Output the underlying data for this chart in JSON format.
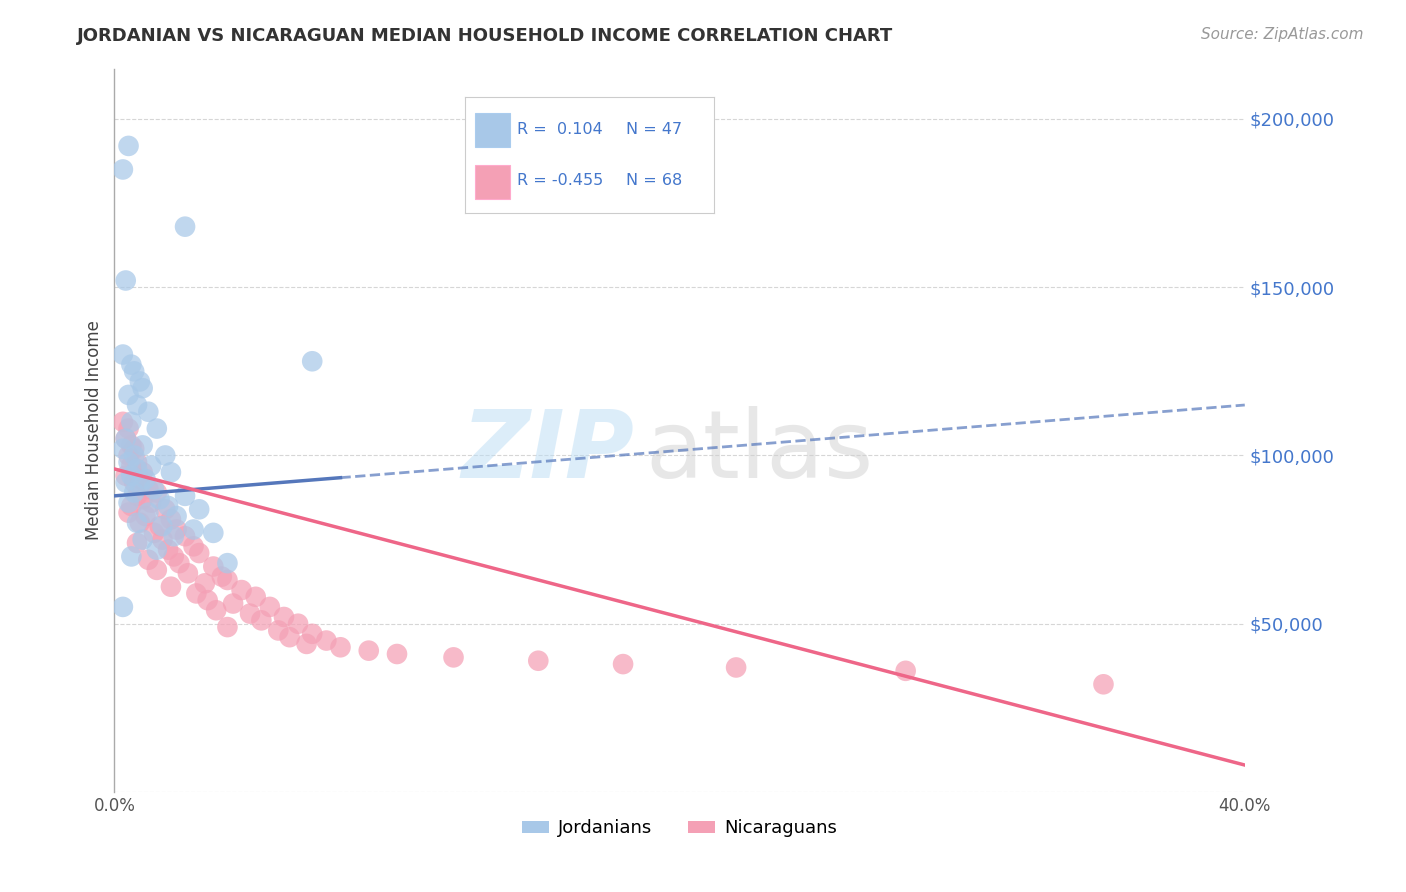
{
  "title": "JORDANIAN VS NICARAGUAN MEDIAN HOUSEHOLD INCOME CORRELATION CHART",
  "source": "Source: ZipAtlas.com",
  "ylabel": "Median Household Income",
  "yticks": [
    0,
    50000,
    100000,
    150000,
    200000
  ],
  "ytick_labels": [
    "",
    "$50,000",
    "$100,000",
    "$150,000",
    "$200,000"
  ],
  "xlim": [
    0.0,
    40.0
  ],
  "ylim": [
    0,
    215000
  ],
  "legend_label1": "Jordanians",
  "legend_label2": "Nicaraguans",
  "color_jordan": "#a8c8e8",
  "color_nicara": "#f4a0b5",
  "line_color_jordan": "#5577bb",
  "line_color_nicara": "#ee6688",
  "text_color_blue": "#4477cc",
  "background_color": "#ffffff",
  "grid_color": "#cccccc",
  "title_color": "#333333",
  "jordan_r": 0.104,
  "jordan_n": 47,
  "nicara_r": -0.455,
  "nicara_n": 68,
  "jordan_line_x0": 0.0,
  "jordan_line_y0": 88000,
  "jordan_line_x1": 40.0,
  "jordan_line_y1": 115000,
  "nicara_line_x0": 0.0,
  "nicara_line_y0": 96000,
  "nicara_line_x1": 40.0,
  "nicara_line_y1": 8000,
  "jordan_points": [
    [
      0.3,
      185000
    ],
    [
      0.5,
      192000
    ],
    [
      2.5,
      168000
    ],
    [
      0.4,
      152000
    ],
    [
      0.3,
      130000
    ],
    [
      0.6,
      127000
    ],
    [
      0.7,
      125000
    ],
    [
      0.9,
      122000
    ],
    [
      1.0,
      120000
    ],
    [
      0.5,
      118000
    ],
    [
      0.8,
      115000
    ],
    [
      1.2,
      113000
    ],
    [
      0.6,
      110000
    ],
    [
      1.5,
      108000
    ],
    [
      0.4,
      105000
    ],
    [
      1.0,
      103000
    ],
    [
      0.3,
      102000
    ],
    [
      0.7,
      100000
    ],
    [
      1.8,
      100000
    ],
    [
      0.5,
      98000
    ],
    [
      1.3,
      97000
    ],
    [
      0.8,
      96000
    ],
    [
      2.0,
      95000
    ],
    [
      0.6,
      94000
    ],
    [
      1.1,
      93000
    ],
    [
      0.4,
      92000
    ],
    [
      0.9,
      91000
    ],
    [
      1.4,
      90000
    ],
    [
      0.7,
      89000
    ],
    [
      2.5,
      88000
    ],
    [
      1.6,
      87000
    ],
    [
      0.5,
      86000
    ],
    [
      1.9,
      85000
    ],
    [
      3.0,
      84000
    ],
    [
      1.2,
      83000
    ],
    [
      2.2,
      82000
    ],
    [
      0.8,
      80000
    ],
    [
      1.7,
      79000
    ],
    [
      2.8,
      78000
    ],
    [
      3.5,
      77000
    ],
    [
      2.1,
      76000
    ],
    [
      1.0,
      75000
    ],
    [
      7.0,
      128000
    ],
    [
      0.3,
      55000
    ],
    [
      1.5,
      72000
    ],
    [
      0.6,
      70000
    ],
    [
      4.0,
      68000
    ]
  ],
  "nicara_points": [
    [
      0.3,
      110000
    ],
    [
      0.5,
      108000
    ],
    [
      0.4,
      105000
    ],
    [
      0.6,
      103000
    ],
    [
      0.7,
      102000
    ],
    [
      0.5,
      100000
    ],
    [
      0.8,
      98000
    ],
    [
      0.6,
      97000
    ],
    [
      1.0,
      95000
    ],
    [
      0.4,
      94000
    ],
    [
      0.9,
      93000
    ],
    [
      0.7,
      92000
    ],
    [
      1.2,
      90000
    ],
    [
      1.5,
      89000
    ],
    [
      0.8,
      88000
    ],
    [
      1.0,
      87000
    ],
    [
      1.3,
      86000
    ],
    [
      0.6,
      85000
    ],
    [
      1.8,
      84000
    ],
    [
      0.5,
      83000
    ],
    [
      1.1,
      82000
    ],
    [
      2.0,
      81000
    ],
    [
      0.9,
      80000
    ],
    [
      1.6,
      79000
    ],
    [
      2.2,
      78000
    ],
    [
      1.4,
      77000
    ],
    [
      2.5,
      76000
    ],
    [
      1.7,
      75000
    ],
    [
      0.8,
      74000
    ],
    [
      2.8,
      73000
    ],
    [
      1.9,
      72000
    ],
    [
      3.0,
      71000
    ],
    [
      2.1,
      70000
    ],
    [
      1.2,
      69000
    ],
    [
      2.3,
      68000
    ],
    [
      3.5,
      67000
    ],
    [
      1.5,
      66000
    ],
    [
      2.6,
      65000
    ],
    [
      3.8,
      64000
    ],
    [
      4.0,
      63000
    ],
    [
      3.2,
      62000
    ],
    [
      2.0,
      61000
    ],
    [
      4.5,
      60000
    ],
    [
      2.9,
      59000
    ],
    [
      5.0,
      58000
    ],
    [
      3.3,
      57000
    ],
    [
      4.2,
      56000
    ],
    [
      5.5,
      55000
    ],
    [
      3.6,
      54000
    ],
    [
      4.8,
      53000
    ],
    [
      6.0,
      52000
    ],
    [
      5.2,
      51000
    ],
    [
      6.5,
      50000
    ],
    [
      4.0,
      49000
    ],
    [
      5.8,
      48000
    ],
    [
      7.0,
      47000
    ],
    [
      6.2,
      46000
    ],
    [
      7.5,
      45000
    ],
    [
      6.8,
      44000
    ],
    [
      8.0,
      43000
    ],
    [
      9.0,
      42000
    ],
    [
      10.0,
      41000
    ],
    [
      12.0,
      40000
    ],
    [
      15.0,
      39000
    ],
    [
      18.0,
      38000
    ],
    [
      22.0,
      37000
    ],
    [
      28.0,
      36000
    ],
    [
      35.0,
      32000
    ]
  ]
}
